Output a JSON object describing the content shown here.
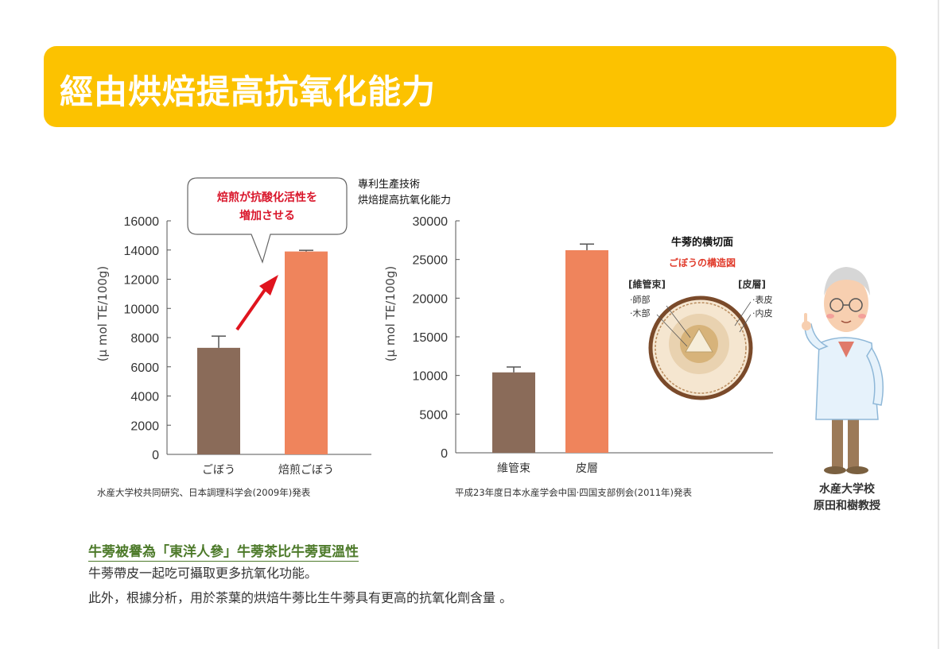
{
  "banner": {
    "title": "經由烘焙提高抗氧化能力",
    "color": "#fcc200"
  },
  "chart_data": [
    {
      "type": "bar",
      "ylabel": "(μ mol TE/100g)",
      "ylim": [
        0,
        16000
      ],
      "yticks": [
        0,
        2000,
        4000,
        6000,
        8000,
        10000,
        12000,
        14000,
        16000
      ],
      "categories": [
        "ごぼう",
        "焙煎ごぼう"
      ],
      "values": [
        7300,
        13900
      ],
      "errors": [
        800,
        80
      ],
      "colors": [
        "#8a6b59",
        "#ef845c"
      ],
      "annotation": "焙煎が抗酸化活性を\n増加させる",
      "source": "水産大学校共同研究、日本調理科学会(2009年)発表"
    },
    {
      "type": "bar",
      "ylabel": "(μ mol TE/100g)",
      "ylim": [
        0,
        30000
      ],
      "yticks": [
        0,
        5000,
        10000,
        15000,
        20000,
        25000,
        30000
      ],
      "categories": [
        "維管束",
        "皮層"
      ],
      "values": [
        10400,
        26200
      ],
      "errors": [
        700,
        800
      ],
      "colors": [
        "#8a6b59",
        "#ef845c"
      ],
      "heading": [
        "專利生產技術",
        "烘焙提高抗氧化能力"
      ],
      "source": "平成23年度日本水産学会中国·四国支部例会(2011年)発表"
    }
  ],
  "diagram": {
    "title": "牛蒡的横切面",
    "subtitle": "ごぼうの構造図",
    "left_head": "[維管束]",
    "left_items": [
      "·師部",
      "·木部"
    ],
    "right_head": "[皮層]",
    "right_items": [
      "·表皮",
      "·内皮"
    ]
  },
  "professor": {
    "line1": "水産大学校",
    "line2": "原田和樹教授"
  },
  "bottom": {
    "heading": "牛蒡被譽為「東洋人參」牛蒡茶比牛蒡更溫性",
    "line1": "牛蒡帶皮一起吃可攝取更多抗氧化功能。",
    "line2": "此外，根據分析，用於茶葉的烘焙牛蒡比生牛蒡具有更高的抗氧化劑含量 。"
  }
}
